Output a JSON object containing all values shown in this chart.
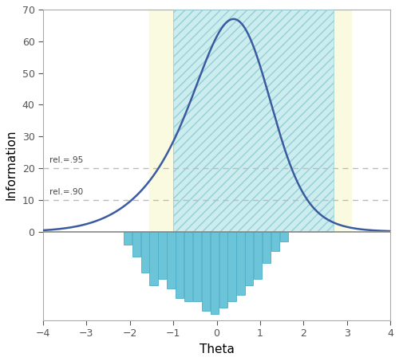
{
  "xlabel": "Theta",
  "ylabel": "Information",
  "xlim": [
    -4,
    4
  ],
  "ylim_top": 70,
  "ylim_bottom": -28,
  "xticks": [
    -4,
    -3,
    -2,
    -1,
    0,
    1,
    2,
    3,
    4
  ],
  "yticks_pos": [
    0,
    10,
    20,
    30,
    40,
    50,
    60,
    70
  ],
  "rel95_y": 20,
  "rel90_y": 10,
  "rel95_label": "rel.=.95",
  "rel90_label": "rel.=.90",
  "yellow_left_x1": -1.55,
  "yellow_left_x2": -1.0,
  "yellow_right_x1": 2.7,
  "yellow_right_x2": 3.1,
  "teal_x1": -1.0,
  "teal_x2": 2.7,
  "yellow_color": "#FAFAE0",
  "teal_color": "#B8E4E8",
  "teal_alpha": 0.7,
  "curve_color": "#3A5BA0",
  "bar_color": "#6BC4D8",
  "bar_edge_color": "#4AAEC8",
  "hatch_color": "#90D0D8",
  "zero_line_color": "#888888",
  "dashed_line_color": "#BBBBBB",
  "background_color": "#FFFFFF",
  "spine_color": "#AAAAAA",
  "bar_centers": [
    -2.05,
    -1.85,
    -1.65,
    -1.45,
    -1.25,
    -1.05,
    -0.85,
    -0.65,
    -0.45,
    -0.25,
    -0.05,
    0.15,
    0.35,
    0.55,
    0.75,
    0.95,
    1.15,
    1.35,
    1.55
  ],
  "bar_heights": [
    -4,
    -8,
    -13,
    -17,
    -15,
    -18,
    -21,
    -22,
    -22,
    -25,
    -26,
    -24,
    -22,
    -20,
    -17,
    -15,
    -10,
    -6,
    -3
  ],
  "bar_width": 0.19
}
